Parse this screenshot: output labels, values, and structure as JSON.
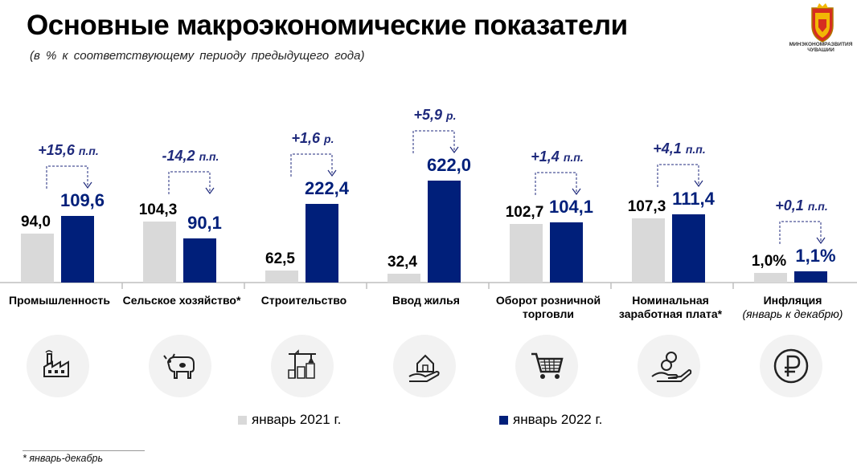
{
  "title": "Основные макроэкономические показатели",
  "subtitle": "(в % к соответствующему периоду предыдущего года)",
  "logo_text": "МИНЭКОНОМРАЗВИТИЯ ЧУВАШИИ",
  "colors": {
    "jan2021": "#d9d9d9",
    "jan2022": "#001f7a",
    "accent": "#1f2a7c"
  },
  "legend": {
    "series1": "январь 2021 г.",
    "series2": "январь 2022 г."
  },
  "footnote": "* январь-декабрь",
  "categories": [
    {
      "label": "Промышленность",
      "sub": "",
      "icon": "factory-icon"
    },
    {
      "label": "Сельское хозяйство*",
      "sub": "",
      "icon": "cow-icon"
    },
    {
      "label": "Строительство",
      "sub": "",
      "icon": "construction-icon"
    },
    {
      "label": "Ввод жилья",
      "sub": "",
      "icon": "house-in-hand-icon"
    },
    {
      "label": "Оборот розничной торговли",
      "sub": "",
      "icon": "shopping-cart-icon"
    },
    {
      "label": "Номинальная заработная плата*",
      "sub": "",
      "icon": "money-in-hand-icon"
    },
    {
      "label": "Инфляция",
      "sub": "(январь к декабрю)",
      "icon": "ruble-icon"
    }
  ],
  "chart_data": {
    "type": "bar",
    "title": "Основные макроэкономические показатели",
    "subtitle": "(в % к соответствующему периоду предыдущего года)",
    "categories": [
      "Промышленность",
      "Сельское хозяйство*",
      "Строительство",
      "Ввод жилья",
      "Оборот розничной торговли",
      "Номинальная заработная плата*",
      "Инфляция"
    ],
    "series": [
      {
        "name": "январь 2021 г.",
        "values": [
          94.0,
          104.3,
          62.5,
          32.4,
          102.7,
          107.3,
          1.0
        ],
        "labels": [
          "94,0",
          "104,3",
          "62,5",
          "32,4",
          "102,7",
          "107,3",
          "1,0%"
        ]
      },
      {
        "name": "январь 2022 г.",
        "values": [
          109.6,
          90.1,
          222.4,
          622.0,
          104.1,
          111.4,
          1.1
        ],
        "labels": [
          "109,6",
          "90,1",
          "222,4",
          "622,0",
          "104,1",
          "111,4",
          "1,1%"
        ]
      }
    ],
    "changes": [
      "+15,6 п.п.",
      "-14,2 п.п.",
      "+1,6 р.",
      "+5,9 р.",
      "+1,4 п.п.",
      "+4,1 п.п.",
      "+0,1 п.п."
    ],
    "legend_position": "bottom",
    "grid": false
  }
}
